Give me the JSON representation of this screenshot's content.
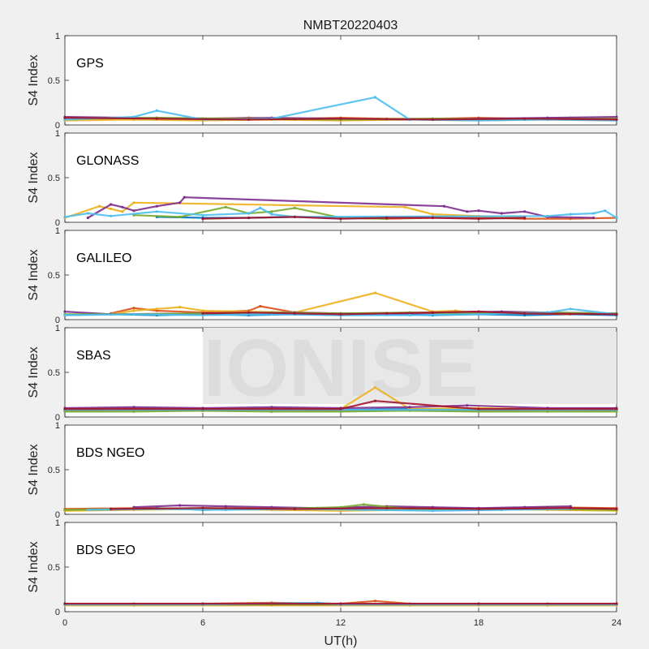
{
  "title": "NMBT20220403",
  "watermark": "IONISE",
  "chart_data": {
    "type": "scatter",
    "xlabel": "UT(h)",
    "xlim": [
      0,
      24
    ],
    "xticks": [
      0,
      6,
      12,
      18,
      24
    ],
    "ylim": [
      0,
      1
    ],
    "yticks": [
      0,
      0.5,
      1
    ],
    "colors": [
      "#0072BD",
      "#D95319",
      "#EDB120",
      "#7E2F8E",
      "#77AC30",
      "#4DBEEE",
      "#A2142F"
    ],
    "panels": [
      {
        "label": "GPS",
        "ylabel": "S4 Index",
        "series": [
          {
            "x": [
              0,
              2,
              4,
              6,
              8,
              10,
              12,
              14,
              16,
              18,
              20,
              22,
              24
            ],
            "y": [
              0.06,
              0.07,
              0.07,
              0.06,
              0.07,
              0.06,
              0.06,
              0.06,
              0.07,
              0.06,
              0.06,
              0.07,
              0.06
            ]
          },
          {
            "x": [
              0,
              2,
              4,
              6,
              8,
              10,
              12,
              14,
              16,
              18,
              20,
              22,
              24
            ],
            "y": [
              0.08,
              0.07,
              0.08,
              0.07,
              0.08,
              0.07,
              0.08,
              0.07,
              0.07,
              0.08,
              0.07,
              0.08,
              0.07
            ]
          },
          {
            "x": [
              0,
              3,
              6,
              9,
              12,
              15,
              18,
              21,
              24
            ],
            "y": [
              0.05,
              0.06,
              0.05,
              0.06,
              0.05,
              0.06,
              0.05,
              0.06,
              0.05
            ]
          },
          {
            "x": [
              0,
              3,
              6,
              9,
              12,
              15,
              18,
              21,
              24
            ],
            "y": [
              0.09,
              0.08,
              0.07,
              0.08,
              0.07,
              0.06,
              0.07,
              0.08,
              0.09
            ]
          },
          {
            "x": [
              0,
              4,
              8,
              12,
              16,
              20,
              24
            ],
            "y": [
              0.07,
              0.08,
              0.07,
              0.06,
              0.07,
              0.06,
              0.07
            ]
          },
          {
            "x": [
              0,
              3,
              4,
              6,
              9,
              13.5,
              15,
              18,
              21,
              24
            ],
            "y": [
              0.06,
              0.09,
              0.16,
              0.06,
              0.07,
              0.31,
              0.06,
              0.05,
              0.06,
              0.05
            ]
          },
          {
            "x": [
              0,
              4,
              8,
              12,
              16,
              20,
              24
            ],
            "y": [
              0.08,
              0.07,
              0.06,
              0.07,
              0.06,
              0.07,
              0.06
            ]
          }
        ]
      },
      {
        "label": "GLONASS",
        "ylabel": "S4 Index",
        "series": [
          {
            "x": [
              4,
              6,
              8,
              10,
              12,
              14,
              16,
              18,
              20
            ],
            "y": [
              0.06,
              0.05,
              0.05,
              0.06,
              0.05,
              0.05,
              0.06,
              0.05,
              0.05
            ]
          },
          {
            "x": [
              12,
              14,
              16,
              18,
              20,
              22,
              24
            ],
            "y": [
              0.05,
              0.04,
              0.05,
              0.05,
              0.04,
              0.04,
              0.05
            ]
          },
          {
            "x": [
              0,
              1.5,
              2,
              2.5,
              3,
              14.8,
              16,
              18,
              20
            ],
            "y": [
              0.05,
              0.18,
              0.15,
              0.12,
              0.22,
              0.17,
              0.09,
              0.07,
              0.06
            ]
          },
          {
            "x": [
              1,
              2,
              2.5,
              3,
              4,
              5,
              5.2,
              16.5,
              17.5,
              18,
              19,
              20,
              21,
              23
            ],
            "y": [
              0.05,
              0.2,
              0.17,
              0.13,
              0.18,
              0.22,
              0.28,
              0.18,
              0.12,
              0.13,
              0.1,
              0.12,
              0.06,
              0.05
            ]
          },
          {
            "x": [
              3,
              5,
              7,
              8,
              9,
              10,
              12,
              14
            ],
            "y": [
              0.08,
              0.06,
              0.17,
              0.1,
              0.12,
              0.16,
              0.05,
              0.04
            ]
          },
          {
            "x": [
              0,
              1,
              2,
              4,
              6,
              8,
              8.5,
              9,
              10,
              21,
              22,
              23,
              23.5,
              24
            ],
            "y": [
              0.06,
              0.1,
              0.07,
              0.12,
              0.08,
              0.1,
              0.16,
              0.09,
              0.06,
              0.07,
              0.09,
              0.1,
              0.13,
              0.05
            ]
          },
          {
            "x": [
              6,
              8,
              10,
              12,
              14,
              16,
              18,
              20
            ],
            "y": [
              0.04,
              0.05,
              0.06,
              0.04,
              0.05,
              0.05,
              0.04,
              0.05
            ]
          }
        ]
      },
      {
        "label": "GALILEO",
        "ylabel": "S4 Index",
        "series": [
          {
            "x": [
              0,
              2,
              4,
              6,
              8,
              10,
              12,
              14,
              16,
              18,
              20,
              22,
              24
            ],
            "y": [
              0.05,
              0.06,
              0.05,
              0.06,
              0.05,
              0.06,
              0.05,
              0.06,
              0.05,
              0.06,
              0.05,
              0.06,
              0.05
            ]
          },
          {
            "x": [
              2,
              3,
              4,
              6,
              8,
              8.5,
              10,
              12,
              16,
              18,
              20,
              22
            ],
            "y": [
              0.07,
              0.13,
              0.1,
              0.08,
              0.1,
              0.15,
              0.08,
              0.07,
              0.08,
              0.09,
              0.07,
              0.06
            ]
          },
          {
            "x": [
              2,
              3,
              4,
              5,
              6,
              10,
              13.5,
              16,
              17,
              18
            ],
            "y": [
              0.06,
              0.1,
              0.12,
              0.14,
              0.1,
              0.08,
              0.3,
              0.09,
              0.1,
              0.07
            ]
          },
          {
            "x": [
              0,
              2,
              6,
              10,
              12,
              14,
              17,
              19,
              21,
              24
            ],
            "y": [
              0.09,
              0.06,
              0.07,
              0.08,
              0.07,
              0.06,
              0.08,
              0.09,
              0.08,
              0.07
            ]
          },
          {
            "x": [
              0,
              3,
              6,
              9,
              12,
              15,
              18,
              21,
              24
            ],
            "y": [
              0.06,
              0.06,
              0.07,
              0.08,
              0.07,
              0.08,
              0.07,
              0.08,
              0.07
            ]
          },
          {
            "x": [
              0,
              3,
              6,
              9,
              12,
              15,
              18,
              21,
              22,
              24
            ],
            "y": [
              0.05,
              0.06,
              0.05,
              0.06,
              0.05,
              0.05,
              0.06,
              0.08,
              0.12,
              0.06
            ]
          },
          {
            "x": [
              6,
              8,
              10,
              12,
              14,
              16,
              18,
              20,
              24
            ],
            "y": [
              0.07,
              0.08,
              0.07,
              0.06,
              0.07,
              0.08,
              0.09,
              0.07,
              0.06
            ]
          }
        ]
      },
      {
        "label": "SBAS",
        "ylabel": "S4 Index",
        "series": [
          {
            "x": [
              0,
              3,
              6,
              9,
              12,
              15,
              18,
              21,
              24
            ],
            "y": [
              0.08,
              0.08,
              0.09,
              0.08,
              0.08,
              0.09,
              0.08,
              0.08,
              0.08
            ]
          },
          {
            "x": [
              0,
              3,
              6,
              9,
              12,
              15,
              18,
              21,
              24
            ],
            "y": [
              0.07,
              0.08,
              0.07,
              0.08,
              0.07,
              0.08,
              0.07,
              0.08,
              0.07
            ]
          },
          {
            "x": [
              0,
              3,
              6,
              9,
              12,
              13.5,
              15,
              18,
              21,
              24
            ],
            "y": [
              0.09,
              0.1,
              0.09,
              0.1,
              0.09,
              0.33,
              0.09,
              0.1,
              0.09,
              0.09
            ]
          },
          {
            "x": [
              0,
              3,
              6,
              9,
              12,
              15,
              17.5,
              21,
              24
            ],
            "y": [
              0.1,
              0.11,
              0.1,
              0.11,
              0.1,
              0.11,
              0.13,
              0.1,
              0.1
            ]
          },
          {
            "x": [
              0,
              3,
              6,
              9,
              12,
              15,
              18,
              21,
              24
            ],
            "y": [
              0.06,
              0.06,
              0.07,
              0.06,
              0.06,
              0.07,
              0.06,
              0.06,
              0.06
            ]
          },
          {
            "x": [
              0,
              6,
              12,
              18,
              24
            ],
            "y": [
              0.08,
              0.08,
              0.08,
              0.08,
              0.08
            ]
          },
          {
            "x": [
              0,
              6,
              12,
              13.5,
              18,
              24
            ],
            "y": [
              0.09,
              0.09,
              0.09,
              0.18,
              0.09,
              0.09
            ]
          }
        ]
      },
      {
        "label": "BDS NGEO",
        "ylabel": "S4 Index",
        "series": [
          {
            "x": [
              0,
              2,
              4,
              6,
              8,
              10,
              12,
              14,
              16,
              18,
              20,
              22,
              24
            ],
            "y": [
              0.05,
              0.06,
              0.07,
              0.05,
              0.06,
              0.07,
              0.06,
              0.05,
              0.06,
              0.05,
              0.06,
              0.05,
              0.06
            ]
          },
          {
            "x": [
              0,
              3,
              6,
              9,
              12,
              15,
              18,
              21,
              24
            ],
            "y": [
              0.06,
              0.07,
              0.06,
              0.07,
              0.06,
              0.07,
              0.06,
              0.08,
              0.07
            ]
          },
          {
            "x": [
              0,
              3,
              6,
              9,
              12,
              15,
              18,
              21,
              24
            ],
            "y": [
              0.04,
              0.05,
              0.06,
              0.05,
              0.04,
              0.05,
              0.06,
              0.05,
              0.04
            ]
          },
          {
            "x": [
              3,
              5,
              7,
              9,
              11,
              14,
              16,
              18,
              20,
              22
            ],
            "y": [
              0.08,
              0.1,
              0.09,
              0.08,
              0.07,
              0.09,
              0.08,
              0.07,
              0.08,
              0.09
            ]
          },
          {
            "x": [
              0,
              3,
              6,
              9,
              12,
              13,
              15,
              18,
              21,
              24
            ],
            "y": [
              0.05,
              0.06,
              0.07,
              0.06,
              0.08,
              0.11,
              0.06,
              0.05,
              0.06,
              0.05
            ]
          },
          {
            "x": [
              1,
              4,
              7,
              10,
              13,
              16,
              19,
              22
            ],
            "y": [
              0.05,
              0.06,
              0.05,
              0.06,
              0.05,
              0.04,
              0.05,
              0.06
            ]
          },
          {
            "x": [
              2,
              6,
              10,
              14,
              18,
              22,
              24
            ],
            "y": [
              0.06,
              0.07,
              0.06,
              0.07,
              0.06,
              0.07,
              0.06
            ]
          }
        ]
      },
      {
        "label": "BDS GEO",
        "ylabel": "S4 Index",
        "series": [
          {
            "x": [
              0,
              4,
              8,
              12,
              16,
              20,
              24
            ],
            "y": [
              0.08,
              0.08,
              0.08,
              0.08,
              0.08,
              0.08,
              0.08
            ]
          },
          {
            "x": [
              0,
              3,
              6,
              9,
              12,
              13.5,
              15,
              18,
              21,
              24
            ],
            "y": [
              0.09,
              0.09,
              0.09,
              0.1,
              0.09,
              0.12,
              0.09,
              0.09,
              0.09,
              0.09
            ]
          },
          {
            "x": [
              0,
              3,
              6,
              9,
              12,
              15,
              18,
              21,
              24
            ],
            "y": [
              0.07,
              0.07,
              0.07,
              0.07,
              0.07,
              0.07,
              0.07,
              0.07,
              0.07
            ]
          },
          {
            "x": [
              0,
              6,
              12,
              18,
              24
            ],
            "y": [
              0.08,
              0.08,
              0.08,
              0.08,
              0.08
            ]
          },
          {
            "x": [
              0,
              6,
              12,
              18,
              24
            ],
            "y": [
              0.08,
              0.08,
              0.08,
              0.08,
              0.08
            ]
          },
          {
            "x": [
              0,
              6,
              11,
              12,
              18,
              24
            ],
            "y": [
              0.08,
              0.08,
              0.1,
              0.08,
              0.08,
              0.08
            ]
          },
          {
            "x": [
              0,
              6,
              12,
              18,
              24
            ],
            "y": [
              0.09,
              0.09,
              0.09,
              0.09,
              0.09
            ]
          }
        ]
      }
    ]
  }
}
